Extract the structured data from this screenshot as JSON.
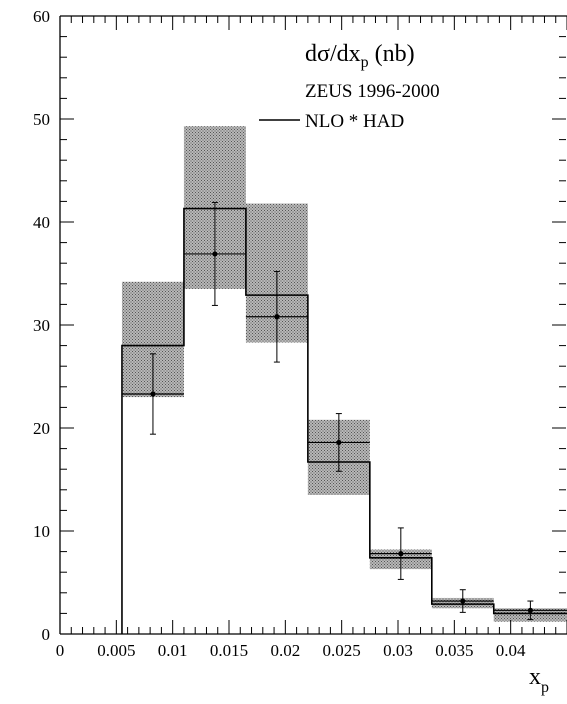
{
  "chart_data": {
    "type": "bar",
    "title_main": "dσ/dx",
    "title_sub": "p",
    "title_unit": " (nb)",
    "subtitle": "ZEUS 1996-2000",
    "legend": {
      "label": "NLO * HAD",
      "position": "top-right"
    },
    "xlabel_main": "x",
    "xlabel_sub": "p",
    "xlim": [
      0,
      0.045
    ],
    "ylim": [
      0,
      60
    ],
    "x_ticks": [
      {
        "value": 0,
        "label": "0"
      },
      {
        "value": 0.005,
        "label": "0.005"
      },
      {
        "value": 0.01,
        "label": "0.01"
      },
      {
        "value": 0.015,
        "label": "0.015"
      },
      {
        "value": 0.02,
        "label": "0.02"
      },
      {
        "value": 0.025,
        "label": "0.025"
      },
      {
        "value": 0.03,
        "label": "0.03"
      },
      {
        "value": 0.035,
        "label": "0.035"
      },
      {
        "value": 0.04,
        "label": "0.04"
      }
    ],
    "y_ticks": [
      {
        "value": 0,
        "label": "0"
      },
      {
        "value": 10,
        "label": "10"
      },
      {
        "value": 20,
        "label": "20"
      },
      {
        "value": 30,
        "label": "30"
      },
      {
        "value": 40,
        "label": "40"
      },
      {
        "value": 50,
        "label": "50"
      },
      {
        "value": 60,
        "label": "60"
      }
    ],
    "bins": [
      {
        "x_low": 0.0055,
        "x_high": 0.011,
        "data": 23.3,
        "stat_err": 3.9,
        "nlo": 28.0,
        "band_low": 23.0,
        "band_high": 34.2
      },
      {
        "x_low": 0.011,
        "x_high": 0.0165,
        "data": 36.9,
        "stat_err": 5.0,
        "nlo": 41.3,
        "band_low": 33.5,
        "band_high": 49.3
      },
      {
        "x_low": 0.0165,
        "x_high": 0.022,
        "data": 30.8,
        "stat_err": 4.4,
        "nlo": 32.9,
        "band_low": 28.3,
        "band_high": 41.8
      },
      {
        "x_low": 0.022,
        "x_high": 0.0275,
        "data": 18.6,
        "stat_err": 2.8,
        "nlo": 16.7,
        "band_low": 13.5,
        "band_high": 20.8
      },
      {
        "x_low": 0.0275,
        "x_high": 0.033,
        "data": 7.8,
        "stat_err": 2.5,
        "nlo": 7.4,
        "band_low": 6.3,
        "band_high": 8.2
      },
      {
        "x_low": 0.033,
        "x_high": 0.0385,
        "data": 3.2,
        "stat_err": 1.1,
        "nlo": 2.9,
        "band_low": 2.5,
        "band_high": 3.5
      },
      {
        "x_low": 0.0385,
        "x_high": 0.045,
        "data": 2.3,
        "stat_err": 0.9,
        "nlo": 2.0,
        "band_low": 1.2,
        "band_high": 2.5
      }
    ]
  }
}
